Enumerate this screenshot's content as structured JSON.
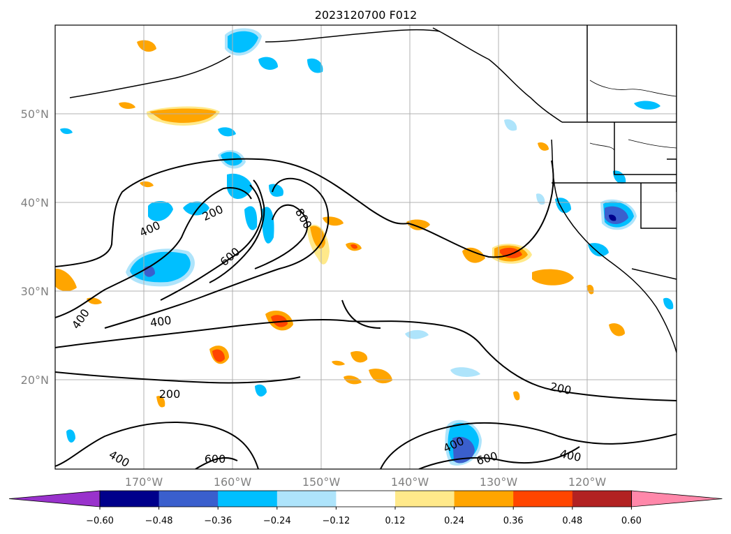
{
  "title": "2023120700 F012",
  "map": {
    "lon_ticks": [
      "170°W",
      "160°W",
      "150°W",
      "140°W",
      "130°W",
      "120°W"
    ],
    "lat_ticks": [
      "50°N",
      "40°N",
      "30°N",
      "20°N"
    ],
    "contour_labels": [
      "200",
      "400",
      "400",
      "600",
      "800",
      "400",
      "400",
      "200",
      "200",
      "400",
      "600",
      "400",
      "600"
    ]
  },
  "colorbar": {
    "tick_labels": [
      "−0.60",
      "−0.48",
      "−0.36",
      "−0.24",
      "−0.12",
      "0.12",
      "0.24",
      "0.36",
      "0.48",
      "0.60"
    ],
    "colors": [
      "#9932cc",
      "#00008b",
      "#3a5fcd",
      "#00bfff",
      "#aee4fb",
      "#ffffff",
      "#ffe98a",
      "#ffa500",
      "#ff4500",
      "#b22222",
      "#ff88aa"
    ]
  }
}
